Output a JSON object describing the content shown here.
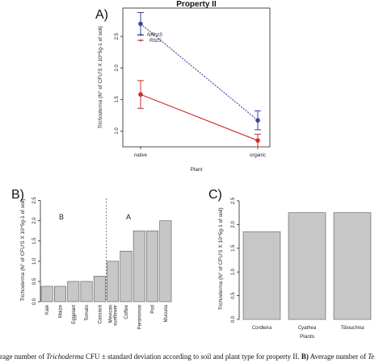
{
  "chart_data": [
    {
      "panel": "A)",
      "type": "line",
      "title": "Property II",
      "xlabel": "Plant",
      "ylabel": "Trichoderma (N° of CFU'S X 10^5g-1 of soil)",
      "categories": [
        "native",
        "organic"
      ],
      "yticks": [
        "1.0",
        "1.5",
        "2.0",
        "2.5"
      ],
      "ylim": [
        0.75,
        2.95
      ],
      "legend_position": "top-left",
      "series": [
        {
          "name": "NRhzS",
          "values": [
            2.7,
            1.17
          ],
          "errors": [
            0.18,
            0.15
          ],
          "color": "#3a3f9e",
          "style": "dotted"
        },
        {
          "name": "RhzS",
          "values": [
            1.58,
            0.85
          ],
          "errors": [
            0.22,
            0.1
          ],
          "color": "#c8302e",
          "style": "solid"
        }
      ]
    },
    {
      "panel": "B)",
      "type": "bar",
      "xlabel": "",
      "ylabel": "Trichoderma (N° of CFU'S X 10^5g-1 of soil)",
      "categories": [
        "Kale",
        "Maize",
        "Eggplant",
        "Tomato",
        "Cassava",
        "Mexican sunflower",
        "Coffee",
        "Persimmon",
        "Pod",
        "Mucuna"
      ],
      "values": [
        0.38,
        0.38,
        0.5,
        0.5,
        0.63,
        1.0,
        1.25,
        1.75,
        1.75,
        2.0
      ],
      "yticks": [
        "0.0",
        "0.5",
        "1.0",
        "1.5",
        "2.0",
        "2.5"
      ],
      "ylim": [
        0,
        2.55
      ],
      "group_labels": [
        "B",
        "A"
      ],
      "bar_color": "#c7c7c7"
    },
    {
      "panel": "C)",
      "type": "bar",
      "xlabel": "Plants",
      "ylabel": "Trichoderma (N° of CFU'S X 10^5g-1 of soil)",
      "categories": [
        "Cordieira",
        "Cyathea",
        "Tibouchina"
      ],
      "values": [
        1.85,
        2.25,
        2.25
      ],
      "yticks": [
        "0.0",
        "0.5",
        "1.0",
        "1.5",
        "2.0",
        "2.5"
      ],
      "ylim": [
        0,
        2.55
      ],
      "bar_color": "#c7c7c7"
    }
  ],
  "caption": {
    "prefix": "rage number of ",
    "italic1": "Trichoderma",
    "middle": " CFU ± standard deviation according to soil and plant type for property II. ",
    "bold": "B)",
    "suffix": " Average number of ",
    "italic2": "Te"
  }
}
